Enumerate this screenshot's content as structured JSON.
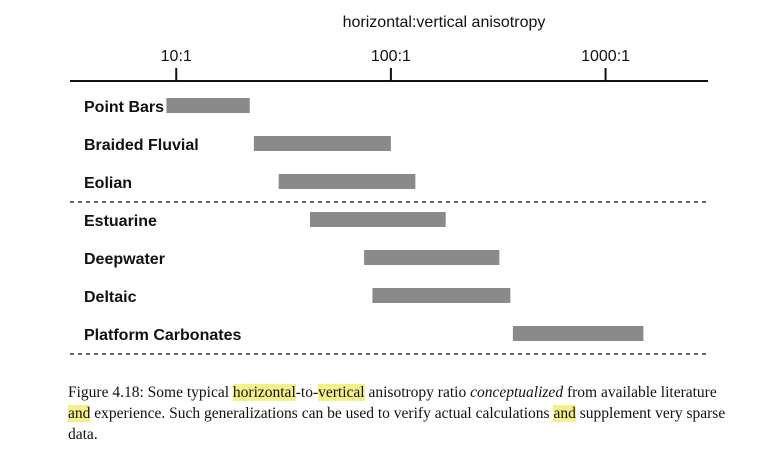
{
  "chart_data": {
    "type": "range-bar",
    "title": "horizontal:vertical anisotropy",
    "xscale": "log",
    "xlim": [
      3.2,
      3000
    ],
    "ticks": [
      {
        "value": 10,
        "label": "10:1"
      },
      {
        "value": 100,
        "label": "100:1"
      },
      {
        "value": 1000,
        "label": "1000:1"
      }
    ],
    "groups": [
      [
        {
          "label": "Point Bars",
          "low": 9,
          "high": 22
        },
        {
          "label": "Braided Fluvial",
          "low": 23,
          "high": 100
        },
        {
          "label": "Eolian",
          "low": 30,
          "high": 130
        }
      ],
      [
        {
          "label": "Estuarine",
          "low": 42,
          "high": 180
        },
        {
          "label": "Deepwater",
          "low": 75,
          "high": 320
        },
        {
          "label": "Deltaic",
          "low": 82,
          "high": 360
        },
        {
          "label": "Platform Carbonates",
          "low": 370,
          "high": 1500
        }
      ]
    ],
    "bar_color": "#8a8a8a",
    "grid": false
  },
  "caption": {
    "prefix": "Figure 4.18:",
    "t1": "Some typical",
    "hl1": "horizontal",
    "t2": "-to-",
    "hl2": "vertical",
    "t3": "anisotropy ratio",
    "em1": "conceptualized",
    "t4": "from available literature",
    "hl3": "and",
    "t5": "experience. Such generalizations can be used to verify actual calculations",
    "hl4": "and",
    "t6": "supplement very sparse data."
  }
}
